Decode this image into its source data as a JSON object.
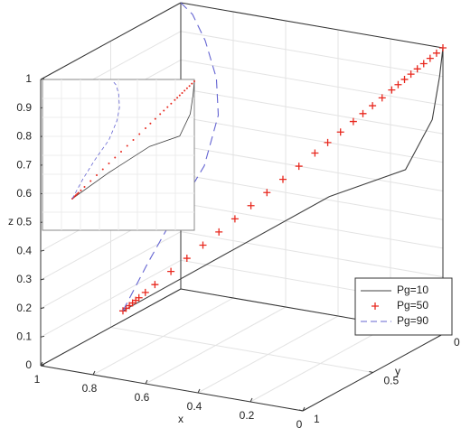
{
  "chart_data": {
    "type": "line3d",
    "xlabel": "x",
    "ylabel": "y",
    "zlabel": "z",
    "xlim": [
      0,
      1
    ],
    "ylim": [
      0,
      1
    ],
    "zlim": [
      0,
      1
    ],
    "xticks": [
      0,
      0.2,
      0.4,
      0.6,
      0.8,
      1
    ],
    "yticks": [
      0,
      0.5,
      1
    ],
    "zticks": [
      0,
      0.1,
      0.2,
      0.3,
      0.4,
      0.5,
      0.6,
      0.7,
      0.8,
      0.9,
      1
    ],
    "grid": true,
    "legend": "lower right",
    "series": [
      {
        "name": "Pg=10",
        "color": "#404040",
        "linestyle": "solid",
        "x": [
          0.9,
          0.6,
          0.3,
          0.1,
          0.03,
          0.01,
          0
        ],
        "y": [
          0.6,
          0.45,
          0.25,
          0.08,
          0.02,
          0.005,
          0
        ],
        "z": [
          0.1,
          0.3,
          0.5,
          0.58,
          0.75,
          0.9,
          1
        ]
      },
      {
        "name": "Pg=50",
        "color": "#e8281e",
        "marker": "+",
        "x": [
          0.9,
          0.891,
          0.882,
          0.873,
          0.864,
          0.855,
          0.837,
          0.81,
          0.765,
          0.72,
          0.675,
          0.63,
          0.585,
          0.54,
          0.495,
          0.45,
          0.405,
          0.36,
          0.324,
          0.288,
          0.252,
          0.225,
          0.198,
          0.171,
          0.144,
          0.126,
          0.108,
          0.09,
          0.072,
          0.054,
          0.036,
          0.018,
          0
        ],
        "y": [
          0.6,
          0.594,
          0.588,
          0.582,
          0.576,
          0.57,
          0.558,
          0.54,
          0.51,
          0.48,
          0.45,
          0.42,
          0.39,
          0.36,
          0.33,
          0.3,
          0.27,
          0.24,
          0.216,
          0.192,
          0.168,
          0.15,
          0.132,
          0.114,
          0.096,
          0.084,
          0.072,
          0.06,
          0.048,
          0.036,
          0.024,
          0.012,
          0
        ],
        "z": [
          0.1,
          0.109,
          0.118,
          0.127,
          0.136,
          0.145,
          0.163,
          0.19,
          0.235,
          0.28,
          0.325,
          0.37,
          0.415,
          0.46,
          0.505,
          0.55,
          0.595,
          0.64,
          0.676,
          0.712,
          0.748,
          0.775,
          0.802,
          0.829,
          0.856,
          0.874,
          0.892,
          0.91,
          0.928,
          0.946,
          0.964,
          0.982,
          1
        ]
      },
      {
        "name": "Pg=90",
        "color": "#6464d2",
        "linestyle": "dashed",
        "x": [
          0.9,
          0.85,
          0.8,
          0.75,
          0.75,
          0.8,
          0.88,
          0.95,
          1
        ],
        "y": [
          0.6,
          0.52,
          0.42,
          0.3,
          0.2,
          0.12,
          0.05,
          0.01,
          0
        ],
        "z": [
          0.1,
          0.25,
          0.4,
          0.55,
          0.7,
          0.8,
          0.9,
          0.97,
          1
        ]
      }
    ]
  }
}
